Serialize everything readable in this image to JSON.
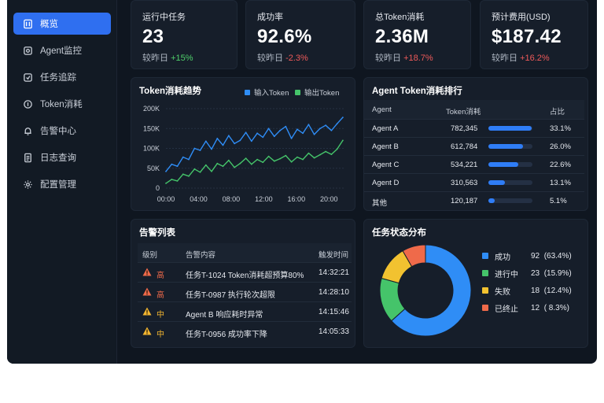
{
  "sidebar": {
    "items": [
      {
        "label": "概览",
        "icon": "overview-icon",
        "active": true
      },
      {
        "label": "Agent监控",
        "icon": "agent-monitor-icon",
        "active": false
      },
      {
        "label": "任务追踪",
        "icon": "task-track-icon",
        "active": false
      },
      {
        "label": "Token消耗",
        "icon": "token-icon",
        "active": false
      },
      {
        "label": "告警中心",
        "icon": "bell-icon",
        "active": false
      },
      {
        "label": "日志查询",
        "icon": "document-icon",
        "active": false
      },
      {
        "label": "配置管理",
        "icon": "gear-icon",
        "active": false
      }
    ]
  },
  "kpis": [
    {
      "title": "运行中任务",
      "value": "23",
      "compare_label": "较昨日",
      "delta": "+15%",
      "delta_color": "#4fcf6a"
    },
    {
      "title": "成功率",
      "value": "92.6%",
      "compare_label": "较昨日",
      "delta": "-2.3%",
      "delta_color": "#ef5a5a"
    },
    {
      "title": "总Token消耗",
      "value": "2.36M",
      "compare_label": "较昨日",
      "delta": "+18.7%",
      "delta_color": "#ef5a5a"
    },
    {
      "title": "预计费用(USD)",
      "value": "$187.42",
      "compare_label": "较昨日",
      "delta": "+16.2%",
      "delta_color": "#ef5a5a"
    }
  ],
  "trend": {
    "title": "Token消耗趋势",
    "legend": [
      {
        "name": "输入Token",
        "color": "#2f8df6"
      },
      {
        "name": "输出Token",
        "color": "#45c46a"
      }
    ]
  },
  "chart_data": {
    "type": "line",
    "x_ticks": [
      "00:00",
      "04:00",
      "08:00",
      "12:00",
      "16:00",
      "20:00"
    ],
    "y_ticks": [
      "200K",
      "150K",
      "100K",
      "50K",
      "0"
    ],
    "ylim": [
      0,
      200000
    ],
    "x_range_hours": [
      0,
      22
    ],
    "series": [
      {
        "name": "输入Token",
        "color": "#2f8df6",
        "x": [
          0,
          0.7,
          1.4,
          2.1,
          2.8,
          3.5,
          4.2,
          4.9,
          5.6,
          6.3,
          7.0,
          7.7,
          8.4,
          9.1,
          9.8,
          10.5,
          11.2,
          11.9,
          12.6,
          13.3,
          14.0,
          14.7,
          15.4,
          16.1,
          16.8,
          17.5,
          18.2,
          18.9,
          19.6,
          20.3,
          21.0,
          21.7
        ],
        "values": [
          42000,
          60000,
          55000,
          78000,
          72000,
          100000,
          95000,
          118000,
          98000,
          125000,
          108000,
          132000,
          112000,
          120000,
          140000,
          118000,
          138000,
          128000,
          150000,
          130000,
          145000,
          155000,
          125000,
          148000,
          138000,
          160000,
          135000,
          150000,
          158000,
          145000,
          162000,
          178000
        ]
      },
      {
        "name": "输出Token",
        "color": "#45c46a",
        "x": [
          0,
          0.7,
          1.4,
          2.1,
          2.8,
          3.5,
          4.2,
          4.9,
          5.6,
          6.3,
          7.0,
          7.7,
          8.4,
          9.1,
          9.8,
          10.5,
          11.2,
          11.9,
          12.6,
          13.3,
          14.0,
          14.7,
          15.4,
          16.1,
          16.8,
          17.5,
          18.2,
          18.9,
          19.6,
          20.3,
          21.0,
          21.7
        ],
        "values": [
          12000,
          22000,
          18000,
          35000,
          30000,
          48000,
          40000,
          58000,
          42000,
          62000,
          55000,
          70000,
          52000,
          62000,
          75000,
          60000,
          72000,
          65000,
          80000,
          68000,
          74000,
          82000,
          66000,
          78000,
          72000,
          88000,
          76000,
          84000,
          92000,
          85000,
          98000,
          120000
        ]
      }
    ]
  },
  "ranking": {
    "title": "Agent Token消耗排行",
    "headers": [
      "Agent",
      "Token消耗",
      "占比"
    ],
    "rows": [
      {
        "name": "Agent A",
        "tokens": "782,345",
        "share": "33.1%",
        "pct": 0.99
      },
      {
        "name": "Agent B",
        "tokens": "612,784",
        "share": "26.0%",
        "pct": 0.78
      },
      {
        "name": "Agent C",
        "tokens": "534,221",
        "share": "22.6%",
        "pct": 0.68
      },
      {
        "name": "Agent D",
        "tokens": "310,563",
        "share": "13.1%",
        "pct": 0.38
      },
      {
        "name": "其他",
        "tokens": "120,187",
        "share": "5.1%",
        "pct": 0.15
      }
    ]
  },
  "alerts": {
    "title": "告警列表",
    "headers": [
      "级别",
      "告警内容",
      "触发时间"
    ],
    "rows": [
      {
        "level": "高",
        "content": "任务T-1024 Token消耗超预算80%",
        "time": "14:32:21",
        "color": "#ef6a4a"
      },
      {
        "level": "高",
        "content": "任务T-0987 执行轮次超限",
        "time": "14:28:10",
        "color": "#ef6a4a"
      },
      {
        "level": "中",
        "content": "Agent B 响应耗时异常",
        "time": "14:15:46",
        "color": "#f2b530"
      },
      {
        "level": "中",
        "content": "任务T-0956 成功率下降",
        "time": "14:05:33",
        "color": "#f2b530"
      }
    ]
  },
  "distribution": {
    "title": "任务状态分布",
    "items": [
      {
        "label": "成功",
        "count": "92",
        "pct_text": "(63.4%)",
        "value": 63.4,
        "color": "#2f8df6"
      },
      {
        "label": "进行中",
        "count": "23",
        "pct_text": "(15.9%)",
        "value": 15.9,
        "color": "#45c46a"
      },
      {
        "label": "失败",
        "count": "18",
        "pct_text": "(12.4%)",
        "value": 12.4,
        "color": "#f2c230"
      },
      {
        "label": "已终止",
        "count": "12",
        "pct_text": "( 8.3%)",
        "value": 8.3,
        "color": "#ef6a4a"
      }
    ]
  }
}
